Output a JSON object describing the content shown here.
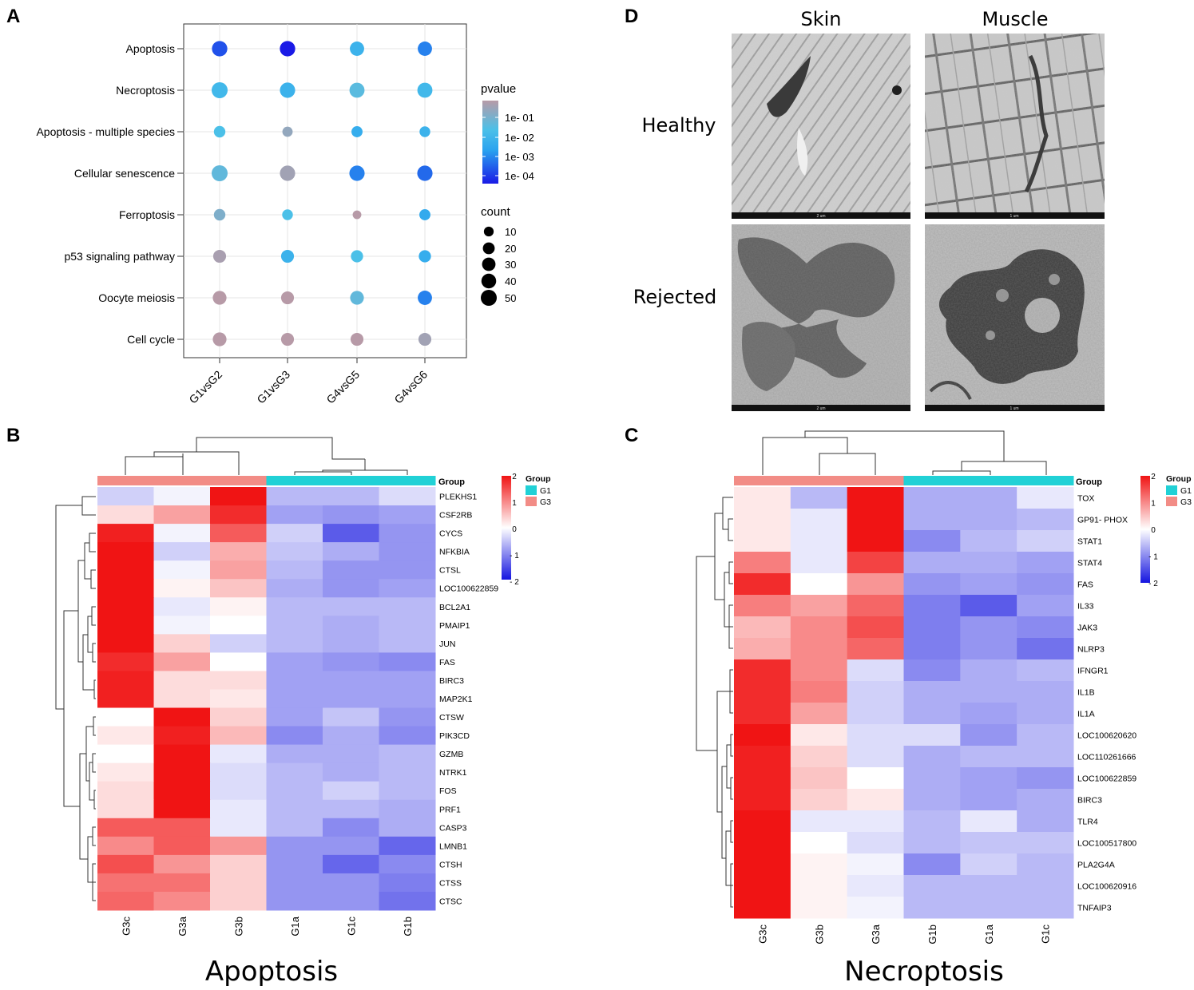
{
  "panels": {
    "a": {
      "letter": "A"
    },
    "b": {
      "letter": "B"
    },
    "c": {
      "letter": "C"
    },
    "d": {
      "letter": "D"
    }
  },
  "chart_data": [
    {
      "id": "A",
      "type": "scatter",
      "subtype": "dotplot",
      "title": "",
      "pathways": [
        "Apoptosis",
        "Necroptosis",
        "Apoptosis - multiple species",
        "Cellular senescence",
        "Ferroptosis",
        "p53 signaling pathway",
        "Oocyte meiosis",
        "Cell cycle"
      ],
      "comparisons": [
        "G1vsG2",
        "G1vsG3",
        "G4vsG5",
        "G4vsG6"
      ],
      "points": [
        {
          "pathway": "Apoptosis",
          "comparison": "G1vsG2",
          "count": 45,
          "log10p": -3.6
        },
        {
          "pathway": "Apoptosis",
          "comparison": "G1vsG3",
          "count": 45,
          "log10p": -4.3
        },
        {
          "pathway": "Apoptosis",
          "comparison": "G4vsG5",
          "count": 36,
          "log10p": -2.0
        },
        {
          "pathway": "Apoptosis",
          "comparison": "G4vsG6",
          "count": 36,
          "log10p": -3.0
        },
        {
          "pathway": "Necroptosis",
          "comparison": "G1vsG2",
          "count": 50,
          "log10p": -1.8
        },
        {
          "pathway": "Necroptosis",
          "comparison": "G1vsG3",
          "count": 44,
          "log10p": -2.0
        },
        {
          "pathway": "Necroptosis",
          "comparison": "G4vsG5",
          "count": 42,
          "log10p": -1.3
        },
        {
          "pathway": "Necroptosis",
          "comparison": "G4vsG6",
          "count": 42,
          "log10p": -1.8
        },
        {
          "pathway": "Apoptosis - multiple species",
          "comparison": "G1vsG2",
          "count": 18,
          "log10p": -1.5
        },
        {
          "pathway": "Apoptosis - multiple species",
          "comparison": "G1vsG3",
          "count": 12,
          "log10p": -0.5
        },
        {
          "pathway": "Apoptosis - multiple species",
          "comparison": "G4vsG5",
          "count": 16,
          "log10p": -2.2
        },
        {
          "pathway": "Apoptosis - multiple species",
          "comparison": "G4vsG6",
          "count": 14,
          "log10p": -2.0
        },
        {
          "pathway": "Cellular senescence",
          "comparison": "G1vsG2",
          "count": 50,
          "log10p": -1.2
        },
        {
          "pathway": "Cellular senescence",
          "comparison": "G1vsG3",
          "count": 44,
          "log10p": -0.3
        },
        {
          "pathway": "Cellular senescence",
          "comparison": "G4vsG5",
          "count": 44,
          "log10p": -3.0
        },
        {
          "pathway": "Cellular senescence",
          "comparison": "G4vsG6",
          "count": 44,
          "log10p": -3.3
        },
        {
          "pathway": "Ferroptosis",
          "comparison": "G1vsG2",
          "count": 18,
          "log10p": -0.8
        },
        {
          "pathway": "Ferroptosis",
          "comparison": "G1vsG3",
          "count": 14,
          "log10p": -1.5
        },
        {
          "pathway": "Ferroptosis",
          "comparison": "G4vsG5",
          "count": 6,
          "log10p": 0.0
        },
        {
          "pathway": "Ferroptosis",
          "comparison": "G4vsG6",
          "count": 16,
          "log10p": -2.3
        },
        {
          "pathway": "p53 signaling pathway",
          "comparison": "G1vsG2",
          "count": 26,
          "log10p": -0.2
        },
        {
          "pathway": "p53 signaling pathway",
          "comparison": "G1vsG3",
          "count": 26,
          "log10p": -2.0
        },
        {
          "pathway": "p53 signaling pathway",
          "comparison": "G4vsG5",
          "count": 22,
          "log10p": -1.5
        },
        {
          "pathway": "p53 signaling pathway",
          "comparison": "G4vsG6",
          "count": 22,
          "log10p": -2.2
        },
        {
          "pathway": "Oocyte meiosis",
          "comparison": "G1vsG2",
          "count": 32,
          "log10p": 0.0
        },
        {
          "pathway": "Oocyte meiosis",
          "comparison": "G1vsG3",
          "count": 26,
          "log10p": 0.0
        },
        {
          "pathway": "Oocyte meiosis",
          "comparison": "G4vsG5",
          "count": 32,
          "log10p": -1.2
        },
        {
          "pathway": "Oocyte meiosis",
          "comparison": "G4vsG6",
          "count": 36,
          "log10p": -3.0
        },
        {
          "pathway": "Cell cycle",
          "comparison": "G1vsG2",
          "count": 32,
          "log10p": 0.0
        },
        {
          "pathway": "Cell cycle",
          "comparison": "G1vsG3",
          "count": 26,
          "log10p": 0.0
        },
        {
          "pathway": "Cell cycle",
          "comparison": "G4vsG5",
          "count": 26,
          "log10p": 0.0
        },
        {
          "pathway": "Cell cycle",
          "comparison": "G4vsG6",
          "count": 26,
          "log10p": -0.3
        }
      ],
      "pvalue_legend": {
        "title": "pvalue",
        "labels": [
          "1e- 01",
          "1e- 02",
          "1e- 03",
          "1e- 04"
        ],
        "log10_values": [
          -1,
          -2,
          -3,
          -4
        ],
        "color_top": "#b79aa7",
        "color_mid": "#2bb7ee",
        "color_bottom": "#1a1ae6"
      },
      "count_legend": {
        "title": "count",
        "labels": [
          "10",
          "20",
          "30",
          "40",
          "50"
        ],
        "values": [
          10,
          20,
          30,
          40,
          50
        ]
      },
      "xlim_count": [
        0,
        50
      ],
      "legend_position": "right"
    },
    {
      "id": "B",
      "type": "heatmap",
      "title": "Apoptosis",
      "columns": [
        "G3c",
        "G3a",
        "G3b",
        "G1a",
        "G1c",
        "G1b"
      ],
      "column_groups": [
        "G3",
        "G3",
        "G3",
        "G1",
        "G1",
        "G1"
      ],
      "rows": [
        "PLEKHS1",
        "CSF2RB",
        "CYCS",
        "NFKBIA",
        "CTSL",
        "LOC100622859",
        "BCL2A1",
        "PMAIP1",
        "JUN",
        "FAS",
        "BIRC3",
        "MAP2K1",
        "CTSW",
        "PIK3CD",
        "GZMB",
        "NTRK1",
        "FOS",
        "PRF1",
        "CASP3",
        "LMNB1",
        "CTSH",
        "CTSS",
        "CTSC"
      ],
      "values": [
        [
          -0.4,
          -0.1,
          2.0,
          -0.6,
          -0.6,
          -0.3
        ],
        [
          0.3,
          0.8,
          1.8,
          -0.8,
          -0.9,
          -0.8
        ],
        [
          1.9,
          -0.1,
          1.4,
          -0.4,
          -1.4,
          -0.9
        ],
        [
          2.0,
          -0.4,
          0.7,
          -0.5,
          -0.7,
          -0.9
        ],
        [
          2.0,
          -0.1,
          0.8,
          -0.6,
          -0.9,
          -0.9
        ],
        [
          2.0,
          0.1,
          0.5,
          -0.7,
          -0.9,
          -0.8
        ],
        [
          2.0,
          -0.2,
          0.1,
          -0.6,
          -0.6,
          -0.6
        ],
        [
          2.0,
          -0.1,
          0.0,
          -0.6,
          -0.7,
          -0.6
        ],
        [
          2.0,
          0.4,
          -0.4,
          -0.6,
          -0.7,
          -0.6
        ],
        [
          1.8,
          0.8,
          0.0,
          -0.8,
          -0.9,
          -1.0
        ],
        [
          1.9,
          0.3,
          0.3,
          -0.8,
          -0.8,
          -0.8
        ],
        [
          1.9,
          0.3,
          0.2,
          -0.8,
          -0.8,
          -0.8
        ],
        [
          0.0,
          2.0,
          0.4,
          -0.8,
          -0.5,
          -0.9
        ],
        [
          0.2,
          1.9,
          0.6,
          -1.0,
          -0.7,
          -1.0
        ],
        [
          0.0,
          2.0,
          -0.2,
          -0.7,
          -0.7,
          -0.6
        ],
        [
          0.2,
          2.0,
          -0.3,
          -0.6,
          -0.7,
          -0.6
        ],
        [
          0.3,
          2.0,
          -0.3,
          -0.6,
          -0.4,
          -0.6
        ],
        [
          0.3,
          2.0,
          -0.2,
          -0.6,
          -0.6,
          -0.7
        ],
        [
          1.4,
          1.4,
          -0.2,
          -0.6,
          -1.0,
          -0.7
        ],
        [
          1.0,
          1.4,
          0.9,
          -0.9,
          -0.9,
          -1.3
        ],
        [
          1.5,
          0.9,
          0.4,
          -0.9,
          -1.3,
          -1.0
        ],
        [
          1.2,
          1.2,
          0.4,
          -0.9,
          -0.9,
          -1.1
        ],
        [
          1.3,
          1.0,
          0.4,
          -0.9,
          -0.9,
          -1.2
        ]
      ],
      "color_scale": {
        "labels": [
          "2",
          "1",
          "0",
          "- 1",
          "- 2"
        ],
        "min": -2,
        "max": 2,
        "low": "#1414e0",
        "mid": "#ffffff",
        "high": "#f01414"
      },
      "group_legend": {
        "title": "Group",
        "items": [
          {
            "name": "G1",
            "color": "#21d1d6"
          },
          {
            "name": "G3",
            "color": "#f28c86"
          }
        ]
      },
      "annotation_label": "Group"
    },
    {
      "id": "C",
      "type": "heatmap",
      "title": "Necroptosis",
      "columns": [
        "G3c",
        "G3b",
        "G3a",
        "G1b",
        "G1a",
        "G1c"
      ],
      "column_groups": [
        "G3",
        "G3",
        "G3",
        "G1",
        "G1",
        "G1"
      ],
      "rows": [
        "TOX",
        "GP91- PHOX",
        "STAT1",
        "STAT4",
        "FAS",
        "IL33",
        "JAK3",
        "NLRP3",
        "IFNGR1",
        "IL1B",
        "IL1A",
        "LOC100620620",
        "LOC110261666",
        "LOC100622859",
        "BIRC3",
        "TLR4",
        "LOC100517800",
        "PLA2G4A",
        "LOC100620916",
        "TNFAIP3"
      ],
      "values": [
        [
          0.2,
          -0.6,
          2.0,
          -0.7,
          -0.7,
          -0.2
        ],
        [
          0.2,
          -0.2,
          2.0,
          -0.7,
          -0.7,
          -0.6
        ],
        [
          0.2,
          -0.2,
          2.0,
          -1.0,
          -0.6,
          -0.4
        ],
        [
          1.1,
          -0.2,
          1.6,
          -0.7,
          -0.7,
          -0.8
        ],
        [
          1.8,
          0.0,
          0.9,
          -0.9,
          -0.8,
          -0.9
        ],
        [
          1.1,
          0.8,
          1.3,
          -1.1,
          -1.4,
          -0.8
        ],
        [
          0.6,
          1.0,
          1.5,
          -1.1,
          -0.9,
          -1.0
        ],
        [
          0.7,
          1.0,
          1.3,
          -1.1,
          -0.9,
          -1.2
        ],
        [
          1.8,
          1.0,
          -0.3,
          -1.0,
          -0.7,
          -0.6
        ],
        [
          1.8,
          1.1,
          -0.4,
          -0.7,
          -0.7,
          -0.7
        ],
        [
          1.8,
          0.8,
          -0.4,
          -0.7,
          -0.8,
          -0.7
        ],
        [
          2.0,
          0.2,
          -0.3,
          -0.3,
          -0.9,
          -0.6
        ],
        [
          1.9,
          0.4,
          -0.3,
          -0.7,
          -0.6,
          -0.6
        ],
        [
          1.9,
          0.5,
          0.0,
          -0.7,
          -0.8,
          -0.9
        ],
        [
          1.9,
          0.4,
          0.2,
          -0.7,
          -0.8,
          -0.7
        ],
        [
          2.0,
          -0.2,
          -0.2,
          -0.6,
          -0.2,
          -0.7
        ],
        [
          2.0,
          0.0,
          -0.3,
          -0.6,
          -0.5,
          -0.5
        ],
        [
          2.0,
          0.1,
          -0.1,
          -1.0,
          -0.4,
          -0.6
        ],
        [
          2.0,
          0.1,
          -0.2,
          -0.6,
          -0.6,
          -0.6
        ],
        [
          2.0,
          0.1,
          -0.1,
          -0.6,
          -0.6,
          -0.6
        ]
      ],
      "color_scale": {
        "labels": [
          "2",
          "1",
          "0",
          "- 1",
          "- 2"
        ],
        "min": -2,
        "max": 2,
        "low": "#1414e0",
        "mid": "#ffffff",
        "high": "#f01414"
      },
      "group_legend": {
        "title": "Group",
        "items": [
          {
            "name": "G1",
            "color": "#21d1d6"
          },
          {
            "name": "G3",
            "color": "#f28c86"
          }
        ]
      },
      "annotation_label": "Group"
    }
  ],
  "micrographs": {
    "columns": [
      "Skin",
      "Muscle"
    ],
    "rows": [
      "Healthy",
      "Rejected"
    ],
    "scale_bars": [
      "2 um",
      "1 um",
      "2 um",
      "1 um"
    ]
  }
}
